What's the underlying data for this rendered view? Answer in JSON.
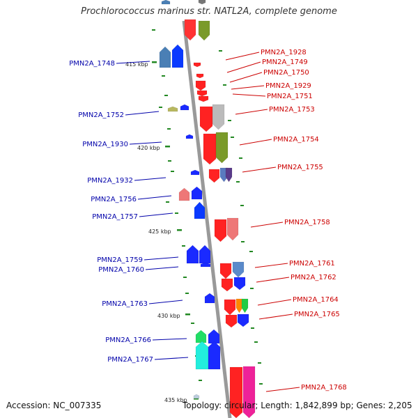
{
  "title": "Prochlorococcus marinus str. NATL2A, complete genome",
  "accession": "Accession: NC_007335",
  "topology": "Topology: circular; Length: 1,842,899 bp; Genes: 2,205",
  "colors": {
    "forward_label": "#cc0000",
    "reverse_label": "#0000aa",
    "backbone": "#999999",
    "tick_mark": "#228822"
  },
  "scale_ticks": [
    "415 kbp",
    "420 kbp",
    "425 kbp",
    "430 kbp",
    "435 kbp"
  ],
  "forward_genes": [
    "PMN2A_1928",
    "PMN2A_1749",
    "PMN2A_1750",
    "PMN2A_1929",
    "PMN2A_1751",
    "PMN2A_1753",
    "PMN2A_1754",
    "PMN2A_1755",
    "PMN2A_1758",
    "PMN2A_1761",
    "PMN2A_1762",
    "PMN2A_1764",
    "PMN2A_1765",
    "PMN2A_1768"
  ],
  "reverse_genes": [
    "PMN2A_1748",
    "PMN2A_1752",
    "PMN2A_1930",
    "PMN2A_1932",
    "PMN2A_1756",
    "PMN2A_1757",
    "PMN2A_1759",
    "PMN2A_1760",
    "PMN2A_1763",
    "PMN2A_1766",
    "PMN2A_1767"
  ]
}
